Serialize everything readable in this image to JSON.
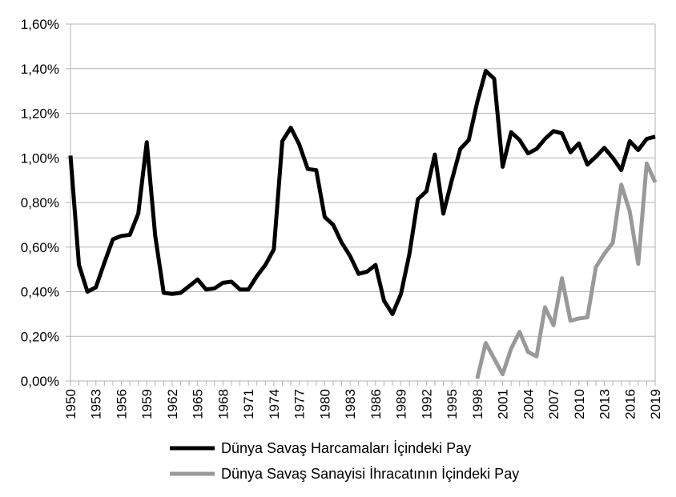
{
  "chart_data": {
    "type": "line",
    "title": "",
    "xlabel": "",
    "ylabel": "",
    "x_start": 1950,
    "x_end": 2019,
    "x_tick_step": 3,
    "ylim": [
      0,
      1.6
    ],
    "y_ticks": [
      0,
      0.2,
      0.4,
      0.6,
      0.8,
      1.0,
      1.2,
      1.4,
      1.6
    ],
    "y_tick_labels": [
      "0,00%",
      "0,20%",
      "0,40%",
      "0,60%",
      "0,80%",
      "1,00%",
      "1,20%",
      "1,40%",
      "1,60%"
    ],
    "grid": true,
    "legend_position": "bottom",
    "series": [
      {
        "name": "Dünya Savaş Harcamaları İçindeki Pay",
        "color": "#000000",
        "x": [
          1950,
          1951,
          1952,
          1953,
          1954,
          1955,
          1956,
          1957,
          1958,
          1959,
          1960,
          1961,
          1962,
          1963,
          1964,
          1965,
          1966,
          1967,
          1968,
          1969,
          1970,
          1971,
          1972,
          1973,
          1974,
          1975,
          1976,
          1977,
          1978,
          1979,
          1980,
          1981,
          1982,
          1983,
          1984,
          1985,
          1986,
          1987,
          1988,
          1989,
          1990,
          1991,
          1992,
          1993,
          1994,
          1995,
          1996,
          1997,
          1998,
          1999,
          2000,
          2001,
          2002,
          2003,
          2004,
          2005,
          2006,
          2007,
          2008,
          2009,
          2010,
          2011,
          2012,
          2013,
          2014,
          2015,
          2016,
          2017,
          2018,
          2019
        ],
        "values": [
          1.01,
          0.52,
          0.4,
          0.42,
          0.53,
          0.635,
          0.65,
          0.655,
          0.75,
          1.07,
          0.65,
          0.395,
          0.39,
          0.395,
          0.425,
          0.455,
          0.41,
          0.415,
          0.44,
          0.445,
          0.41,
          0.41,
          0.47,
          0.52,
          0.59,
          1.075,
          1.135,
          1.06,
          0.95,
          0.945,
          0.735,
          0.7,
          0.62,
          0.56,
          0.48,
          0.49,
          0.52,
          0.36,
          0.3,
          0.39,
          0.57,
          0.815,
          0.85,
          1.015,
          0.75,
          0.9,
          1.04,
          1.08,
          1.25,
          1.39,
          1.355,
          0.96,
          1.115,
          1.08,
          1.02,
          1.04,
          1.085,
          1.12,
          1.11,
          1.025,
          1.065,
          0.97,
          1.005,
          1.045,
          1.0,
          0.945,
          1.075,
          1.035,
          1.085,
          1.095
        ]
      },
      {
        "name": "Dünya Savaş Sanayisi İhracatının İçindeki Pay",
        "color": "#999999",
        "x": [
          1998,
          1999,
          2000,
          2001,
          2002,
          2003,
          2004,
          2005,
          2006,
          2007,
          2008,
          2009,
          2010,
          2011,
          2012,
          2013,
          2014,
          2015,
          2016,
          2017,
          2018,
          2019
        ],
        "values": [
          0.01,
          0.17,
          0.1,
          0.03,
          0.145,
          0.22,
          0.13,
          0.11,
          0.33,
          0.25,
          0.46,
          0.27,
          0.28,
          0.285,
          0.51,
          0.57,
          0.62,
          0.88,
          0.76,
          0.525,
          0.975,
          0.89
        ]
      }
    ]
  }
}
